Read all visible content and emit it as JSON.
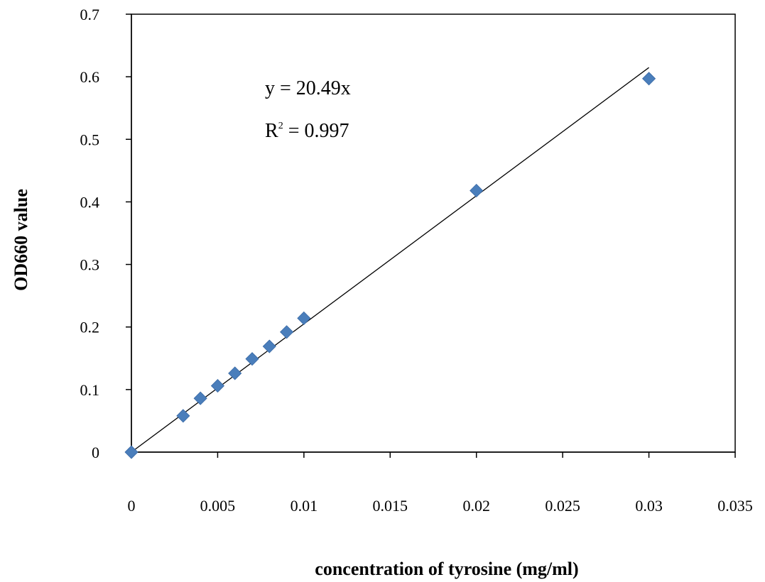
{
  "chart_data": {
    "type": "scatter",
    "title": "",
    "xlabel": "concentration of tyrosine (mg/ml)",
    "ylabel": "OD660 value",
    "xlim": [
      0,
      0.035
    ],
    "ylim": [
      0,
      0.7
    ],
    "x_ticks": [
      "0",
      "0.005",
      "0.01",
      "0.015",
      "0.02",
      "0.025",
      "0.03",
      "0.035"
    ],
    "y_ticks": [
      "0",
      "0.1",
      "0.2",
      "0.3",
      "0.4",
      "0.5",
      "0.6",
      "0.7"
    ],
    "grid": false,
    "legend": "none",
    "series": [
      {
        "marker": "diamond",
        "color": "#4a7ebb",
        "x": [
          0,
          0.003,
          0.004,
          0.005,
          0.006,
          0.007,
          0.008,
          0.009,
          0.01,
          0.02,
          0.03
        ],
        "y": [
          0,
          0.058,
          0.086,
          0.106,
          0.126,
          0.149,
          0.169,
          0.192,
          0.214,
          0.418,
          0.597
        ]
      }
    ],
    "trendline": {
      "slope": 20.49,
      "x_range": [
        0,
        0.03
      ],
      "color": "#000000"
    },
    "annotations": {
      "equation": "y = 20.49x",
      "r2_prefix": "R",
      "r2_sup": "2",
      "r2_rest": " = 0.997"
    }
  }
}
